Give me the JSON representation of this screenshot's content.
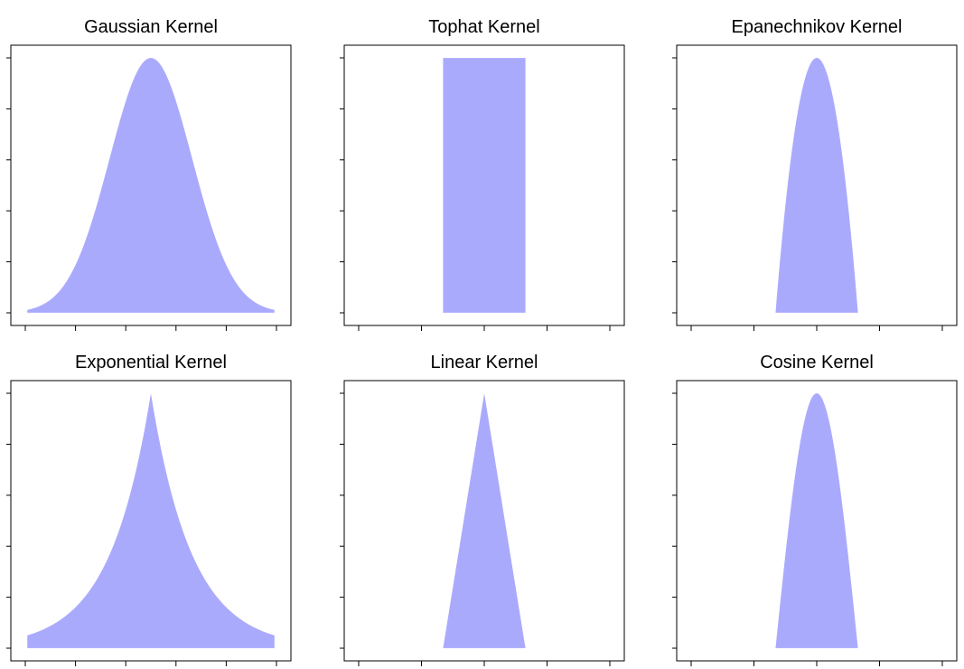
{
  "fill_color": "#aaaafd",
  "chart_data": [
    {
      "type": "area",
      "title": "Gaussian Kernel",
      "kernel": "gaussian",
      "xlabel": "",
      "ylabel": "",
      "xlim": [
        -3.4,
        3.4
      ],
      "ylim": [
        -0.05,
        1.05
      ],
      "support": [
        -3,
        3
      ],
      "peak": 1.0,
      "x_ticks": 6,
      "y_ticks": 6,
      "grid": false,
      "tick_labels": false
    },
    {
      "type": "area",
      "title": "Tophat Kernel",
      "kernel": "tophat",
      "xlabel": "",
      "ylabel": "",
      "xlim": [
        -3.4,
        3.4
      ],
      "ylim": [
        -0.05,
        1.05
      ],
      "support": [
        -1,
        1
      ],
      "peak": 1.0,
      "x_ticks": 5,
      "y_ticks": 6,
      "grid": false,
      "tick_labels": false
    },
    {
      "type": "area",
      "title": "Epanechnikov Kernel",
      "kernel": "epanechnikov",
      "xlabel": "",
      "ylabel": "",
      "xlim": [
        -3.4,
        3.4
      ],
      "ylim": [
        -0.05,
        1.05
      ],
      "support": [
        -1,
        1
      ],
      "peak": 1.0,
      "x_ticks": 5,
      "y_ticks": 6,
      "grid": false,
      "tick_labels": false
    },
    {
      "type": "area",
      "title": "Exponential Kernel",
      "kernel": "exponential",
      "xlabel": "",
      "ylabel": "",
      "xlim": [
        -3.4,
        3.4
      ],
      "ylim": [
        -0.05,
        1.05
      ],
      "support": [
        -3,
        3
      ],
      "peak": 1.0,
      "x_ticks": 6,
      "y_ticks": 6,
      "grid": false,
      "tick_labels": false
    },
    {
      "type": "area",
      "title": "Linear Kernel",
      "kernel": "linear",
      "xlabel": "",
      "ylabel": "",
      "xlim": [
        -3.4,
        3.4
      ],
      "ylim": [
        -0.05,
        1.05
      ],
      "support": [
        -1,
        1
      ],
      "peak": 1.0,
      "x_ticks": 5,
      "y_ticks": 6,
      "grid": false,
      "tick_labels": false
    },
    {
      "type": "area",
      "title": "Cosine Kernel",
      "kernel": "cosine",
      "xlabel": "",
      "ylabel": "",
      "xlim": [
        -3.4,
        3.4
      ],
      "ylim": [
        -0.05,
        1.05
      ],
      "support": [
        -1,
        1
      ],
      "peak": 1.0,
      "x_ticks": 5,
      "y_ticks": 6,
      "grid": false,
      "tick_labels": false
    }
  ]
}
